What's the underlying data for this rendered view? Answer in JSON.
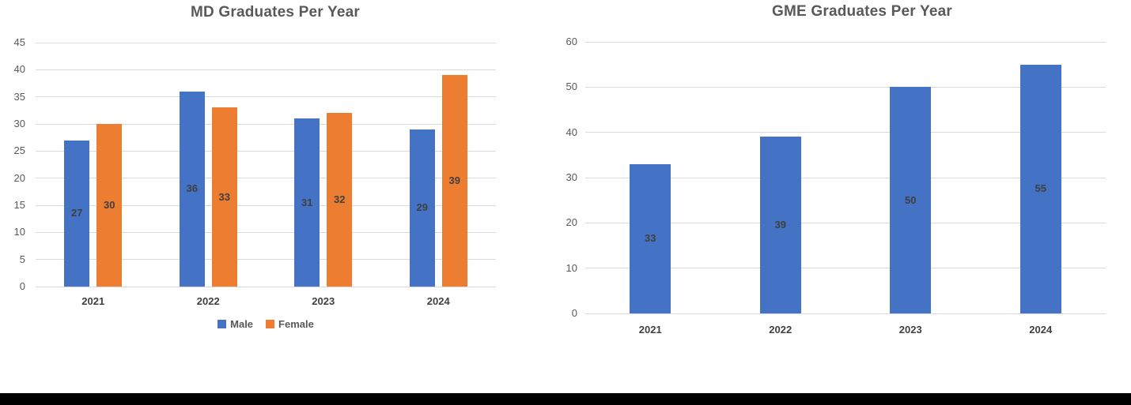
{
  "page": {
    "background": "#FFFFFF",
    "bottom_bar_color": "#000000"
  },
  "styles": {
    "title_color": "#595959",
    "tick_color": "#595959",
    "category_color": "#404040",
    "data_label_color": "#3F3F3F",
    "gridline_color": "#D9D9D9",
    "legend_text_color": "#595959"
  },
  "chart_data": [
    {
      "type": "bar",
      "title": "MD Graduates Per Year",
      "categories": [
        "2021",
        "2022",
        "2023",
        "2024"
      ],
      "series": [
        {
          "name": "Male",
          "color": "#4472C4",
          "values": [
            27,
            36,
            31,
            29
          ]
        },
        {
          "name": "Female",
          "color": "#ED7D31",
          "values": [
            30,
            33,
            32,
            39
          ]
        }
      ],
      "xlabel": "",
      "ylabel": "",
      "ylim": [
        0,
        45
      ],
      "ytick_step": 5,
      "grid": true,
      "legend_position": "bottom",
      "data_labels": "inside-center"
    },
    {
      "type": "bar",
      "title": "GME Graduates Per Year",
      "categories": [
        "2021",
        "2022",
        "2023",
        "2024"
      ],
      "series": [
        {
          "name": "",
          "color": "#4472C4",
          "values": [
            33,
            39,
            50,
            55
          ]
        }
      ],
      "xlabel": "",
      "ylabel": "",
      "ylim": [
        0,
        60
      ],
      "ytick_step": 10,
      "grid": true,
      "legend_position": "none",
      "data_labels": "inside-center"
    }
  ]
}
